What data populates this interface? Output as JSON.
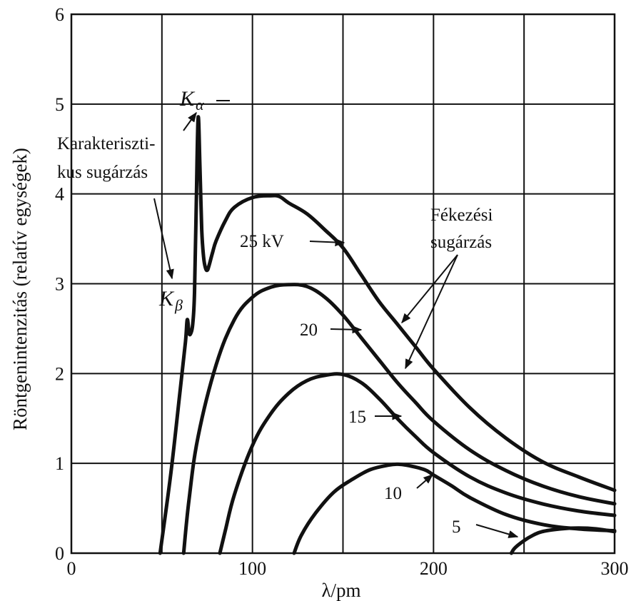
{
  "chart_data": {
    "type": "line",
    "xlabel": "λ/pm",
    "ylabel": "Röntgenintenzitás (relatív egységek)",
    "xlim": [
      0,
      300
    ],
    "ylim": [
      0,
      6
    ],
    "x_ticks": [
      "0",
      "100",
      "200",
      "300"
    ],
    "y_ticks": [
      "0",
      "1",
      "2",
      "3",
      "4",
      "5",
      "6"
    ],
    "grid": true,
    "series": [
      {
        "name": "25 kV",
        "x": [
          49,
          55,
          60,
          63,
          64,
          65,
          66,
          67,
          68,
          69,
          70,
          71,
          72,
          73,
          74,
          75,
          76,
          78,
          80,
          85,
          90,
          100,
          110,
          115,
          120,
          130,
          140,
          150,
          160,
          170,
          180,
          190,
          200,
          220,
          240,
          260,
          280,
          300
        ],
        "y": [
          0,
          0.9,
          1.8,
          2.35,
          2.6,
          2.45,
          2.45,
          2.55,
          2.9,
          3.9,
          4.85,
          4.3,
          3.6,
          3.3,
          3.18,
          3.15,
          3.2,
          3.35,
          3.48,
          3.7,
          3.85,
          3.96,
          3.98,
          3.97,
          3.9,
          3.78,
          3.6,
          3.4,
          3.1,
          2.8,
          2.55,
          2.3,
          2.05,
          1.62,
          1.28,
          1.02,
          0.85,
          0.7
        ]
      },
      {
        "name": "20",
        "x": [
          62,
          65,
          70,
          80,
          90,
          100,
          110,
          120,
          130,
          140,
          150,
          160,
          170,
          180,
          190,
          200,
          220,
          240,
          260,
          280,
          300
        ],
        "y": [
          0,
          0.6,
          1.3,
          2.1,
          2.6,
          2.85,
          2.96,
          2.99,
          2.97,
          2.85,
          2.65,
          2.4,
          2.15,
          1.9,
          1.68,
          1.47,
          1.15,
          0.92,
          0.75,
          0.63,
          0.55
        ]
      },
      {
        "name": "15",
        "x": [
          82,
          85,
          90,
          100,
          110,
          120,
          130,
          140,
          150,
          160,
          170,
          180,
          190,
          200,
          220,
          240,
          260,
          280,
          300
        ],
        "y": [
          0,
          0.25,
          0.65,
          1.2,
          1.55,
          1.78,
          1.92,
          1.98,
          1.99,
          1.9,
          1.72,
          1.5,
          1.3,
          1.12,
          0.85,
          0.67,
          0.55,
          0.47,
          0.42
        ]
      },
      {
        "name": "10",
        "x": [
          123,
          127,
          135,
          145,
          155,
          165,
          175,
          180,
          185,
          195,
          200,
          210,
          220,
          240,
          260,
          280,
          300
        ],
        "y": [
          0,
          0.2,
          0.45,
          0.68,
          0.82,
          0.93,
          0.98,
          0.99,
          0.98,
          0.93,
          0.87,
          0.75,
          0.62,
          0.43,
          0.32,
          0.27,
          0.25
        ]
      },
      {
        "name": "5",
        "x": [
          243,
          245,
          250,
          255,
          260,
          270,
          280,
          290,
          300
        ],
        "y": [
          0,
          0.06,
          0.14,
          0.2,
          0.24,
          0.27,
          0.28,
          0.27,
          0.24
        ]
      }
    ],
    "annotations": {
      "k_alpha_symbol": "K",
      "k_alpha_sub": "α",
      "k_beta_symbol": "K",
      "k_beta_sub": "β",
      "char_line1": "Karakteriszti-",
      "char_line2": "kus sugárzás",
      "brems_line1": "Fékezési",
      "brems_line2": "sugárzás",
      "label_25": "25 kV",
      "label_20": "20",
      "label_15": "15",
      "label_10": "10",
      "label_5": "5"
    }
  }
}
